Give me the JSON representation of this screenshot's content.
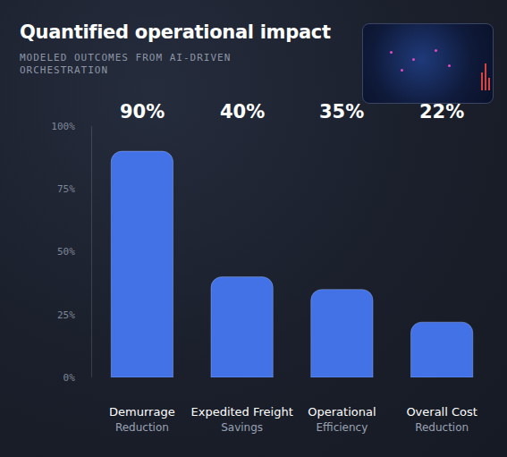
{
  "chart_data": {
    "type": "bar",
    "title": "Quantified operational impact",
    "subtitle": "MODELED OUTCOMES FROM AI-DRIVEN ORCHESTRATION",
    "categories": [
      "Demurrage Reduction",
      "Expedited Freight Savings",
      "Operational Efficiency",
      "Overall Cost Reduction"
    ],
    "values": [
      90,
      40,
      35,
      22
    ],
    "value_labels": [
      "90%",
      "40%",
      "35%",
      "22%"
    ],
    "color": "#4272e6",
    "ylim": [
      0,
      100
    ],
    "yticks": [
      {
        "value": 0,
        "label": "0%"
      },
      {
        "value": 25,
        "label": "25%"
      },
      {
        "value": 50,
        "label": "50%"
      },
      {
        "value": 75,
        "label": "75%"
      },
      {
        "value": 100,
        "label": "100%"
      }
    ],
    "grid": false,
    "data_labels": true
  }
}
